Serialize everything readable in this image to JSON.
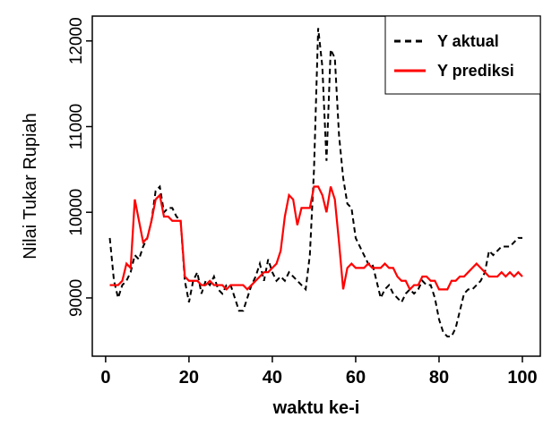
{
  "chart_data": {
    "type": "line",
    "xlabel": "waktu ke-i",
    "ylabel": "Nilai Tukar Rupiah",
    "x": [
      1,
      2,
      3,
      4,
      5,
      6,
      7,
      8,
      9,
      10,
      11,
      12,
      13,
      14,
      15,
      16,
      17,
      18,
      19,
      20,
      21,
      22,
      23,
      24,
      25,
      26,
      27,
      28,
      29,
      30,
      31,
      32,
      33,
      34,
      35,
      36,
      37,
      38,
      39,
      40,
      41,
      42,
      43,
      44,
      45,
      46,
      47,
      48,
      49,
      50,
      51,
      52,
      53,
      54,
      55,
      56,
      57,
      58,
      59,
      60,
      61,
      62,
      63,
      64,
      65,
      66,
      67,
      68,
      69,
      70,
      71,
      72,
      73,
      74,
      75,
      76,
      77,
      78,
      79,
      80,
      81,
      82,
      83,
      84,
      85,
      86,
      87,
      88,
      89,
      90,
      91,
      92,
      93,
      94,
      95,
      96,
      97,
      98,
      99,
      100
    ],
    "series": [
      {
        "name": "Y aktual",
        "color": "#000000",
        "dash": true,
        "values": [
          9700,
          9200,
          9000,
          9150,
          9200,
          9300,
          9500,
          9450,
          9600,
          9700,
          9900,
          10250,
          10300,
          10000,
          10050,
          10050,
          9950,
          9900,
          9200,
          8950,
          9200,
          9300,
          9050,
          9200,
          9150,
          9250,
          9100,
          9050,
          9150,
          9150,
          9000,
          8850,
          8850,
          9000,
          9150,
          9250,
          9400,
          9200,
          9450,
          9300,
          9200,
          9250,
          9200,
          9300,
          9250,
          9200,
          9150,
          9100,
          9500,
          10500,
          12150,
          11700,
          10600,
          11900,
          11800,
          10900,
          10400,
          10100,
          10050,
          9700,
          9600,
          9500,
          9400,
          9400,
          9200,
          9000,
          9100,
          9150,
          9050,
          9000,
          8950,
          9050,
          9100,
          9050,
          9100,
          9200,
          9150,
          9150,
          9000,
          8750,
          8600,
          8550,
          8550,
          8650,
          8850,
          9050,
          9100,
          9100,
          9150,
          9200,
          9300,
          9550,
          9500,
          9550,
          9600,
          9600,
          9600,
          9650,
          9700,
          9700
        ]
      },
      {
        "name": "Y prediksi",
        "color": "#ff0000",
        "dash": false,
        "values": [
          9150,
          9150,
          9150,
          9200,
          9400,
          9350,
          10150,
          9900,
          9650,
          9700,
          9900,
          10150,
          10200,
          9950,
          9950,
          9900,
          9900,
          9900,
          9250,
          9200,
          9200,
          9200,
          9150,
          9150,
          9200,
          9150,
          9150,
          9150,
          9100,
          9150,
          9150,
          9150,
          9150,
          9100,
          9150,
          9200,
          9250,
          9300,
          9300,
          9350,
          9400,
          9550,
          9950,
          10200,
          10150,
          9850,
          10050,
          10050,
          10050,
          10300,
          10300,
          10200,
          10000,
          10300,
          10150,
          9650,
          9100,
          9350,
          9400,
          9350,
          9350,
          9350,
          9400,
          9350,
          9350,
          9350,
          9400,
          9350,
          9350,
          9250,
          9200,
          9200,
          9100,
          9150,
          9150,
          9250,
          9250,
          9200,
          9200,
          9100,
          9100,
          9100,
          9200,
          9200,
          9250,
          9250,
          9300,
          9350,
          9400,
          9350,
          9300,
          9250,
          9250,
          9250,
          9300,
          9250,
          9300,
          9250,
          9300,
          9250
        ]
      }
    ],
    "xlim": [
      -3.2,
      104.3
    ],
    "xticks": [
      0,
      20,
      40,
      60,
      80,
      100
    ],
    "ylim": [
      8320,
      12290
    ],
    "yticks": [
      9000,
      10000,
      11000,
      12000
    ],
    "legend": "upper right"
  }
}
